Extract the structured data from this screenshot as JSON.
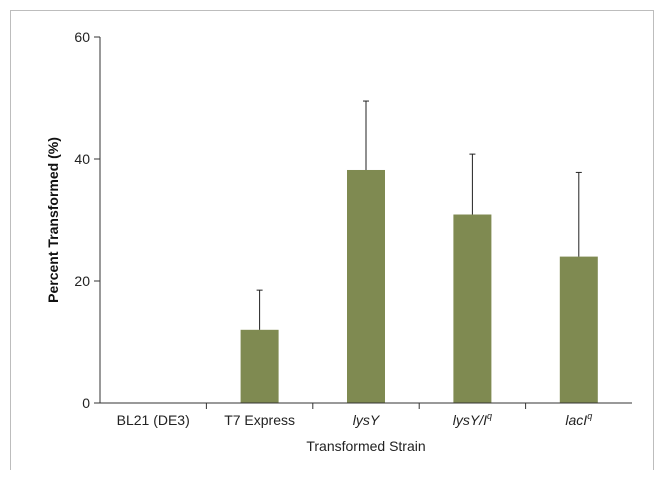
{
  "chart_data": {
    "type": "bar",
    "title": "",
    "xlabel": "Transformed Strain",
    "ylabel": "Percent Transformed (%)",
    "ylim": [
      0,
      60
    ],
    "yticks": [
      0,
      20,
      40,
      60
    ],
    "grid": false,
    "bar_color": "#7f8a51",
    "categories": [
      {
        "label": "BL21 (DE3)",
        "sup": ""
      },
      {
        "label": "T7 Express",
        "sup": ""
      },
      {
        "label": "lysY",
        "sup": ""
      },
      {
        "label": "lysY/I",
        "sup": "q"
      },
      {
        "label": "lacI",
        "sup": "q"
      }
    ],
    "values": [
      0,
      12,
      38.2,
      30.9,
      24
    ],
    "errors": [
      0,
      6.5,
      11.3,
      9.9,
      13.8
    ]
  }
}
